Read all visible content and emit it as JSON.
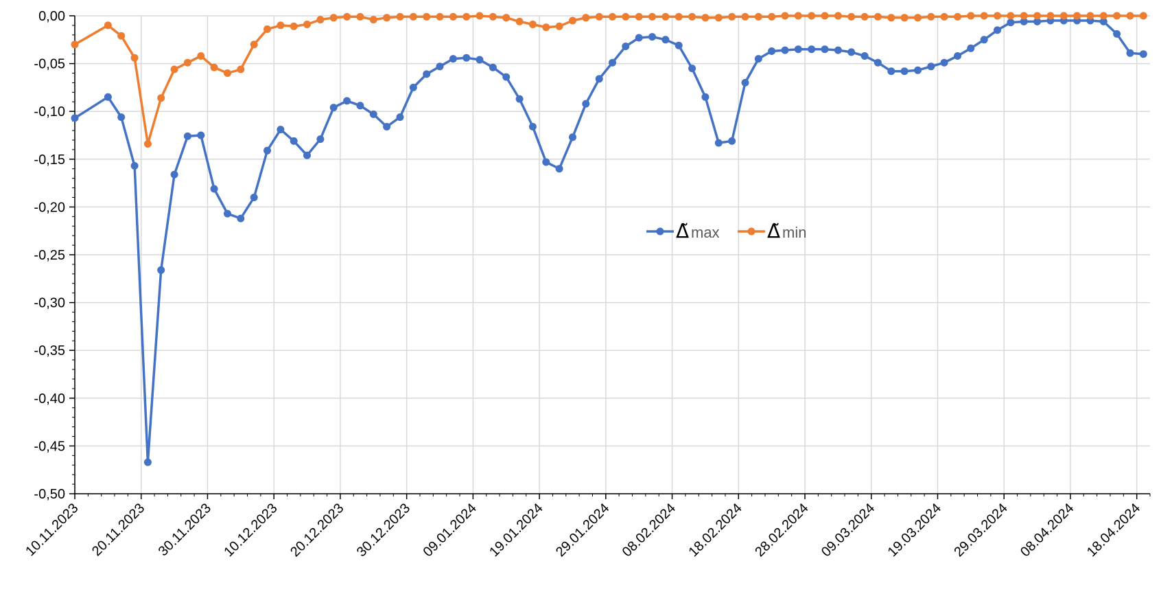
{
  "chart_data": {
    "type": "line",
    "title": "",
    "xlabel": "",
    "ylabel": "",
    "ylim": [
      -0.5,
      0.0
    ],
    "y_ticks": [
      "0,00",
      "-0,05",
      "-0,10",
      "-0,15",
      "-0,20",
      "-0,25",
      "-0,30",
      "-0,35",
      "-0,40",
      "-0,45",
      "-0,50"
    ],
    "y_tick_values": [
      0,
      -0.05,
      -0.1,
      -0.15,
      -0.2,
      -0.25,
      -0.3,
      -0.35,
      -0.4,
      -0.45,
      -0.5
    ],
    "x_range": [
      "2023-11-10",
      "2024-04-20"
    ],
    "x_ticks": [
      "10.11.2023",
      "20.11.2023",
      "30.11.2023",
      "10.12.2023",
      "20.12.2023",
      "30.12.2023",
      "09.01.2024",
      "19.01.2024",
      "29.01.2024",
      "08.02.2024",
      "18.02.2024",
      "28.02.2024",
      "09.03.2024",
      "19.03.2024",
      "29.03.2024",
      "08.04.2024",
      "18.04.2024"
    ],
    "x_tick_dates": [
      "2023-11-10",
      "2023-11-20",
      "2023-11-30",
      "2023-12-10",
      "2023-12-20",
      "2023-12-30",
      "2024-01-09",
      "2024-01-19",
      "2024-01-29",
      "2024-02-08",
      "2024-02-18",
      "2024-02-28",
      "2024-03-09",
      "2024-03-19",
      "2024-03-29",
      "2024-04-08",
      "2024-04-18"
    ],
    "grid": true,
    "legend_position": "center",
    "series": [
      {
        "name": "max",
        "symbol": "Δ̃",
        "color": "#4472C4",
        "points": [
          [
            "2023-11-10",
            -0.107
          ],
          [
            "2023-11-15",
            -0.085
          ],
          [
            "2023-11-17",
            -0.106
          ],
          [
            "2023-11-19",
            -0.157
          ],
          [
            "2023-11-21",
            -0.467
          ],
          [
            "2023-11-23",
            -0.266
          ],
          [
            "2023-11-25",
            -0.166
          ],
          [
            "2023-11-27",
            -0.126
          ],
          [
            "2023-11-29",
            -0.125
          ],
          [
            "2023-12-01",
            -0.181
          ],
          [
            "2023-12-03",
            -0.207
          ],
          [
            "2023-12-05",
            -0.212
          ],
          [
            "2023-12-07",
            -0.19
          ],
          [
            "2023-12-09",
            -0.141
          ],
          [
            "2023-12-11",
            -0.119
          ],
          [
            "2023-12-13",
            -0.131
          ],
          [
            "2023-12-15",
            -0.146
          ],
          [
            "2023-12-17",
            -0.129
          ],
          [
            "2023-12-19",
            -0.096
          ],
          [
            "2023-12-21",
            -0.089
          ],
          [
            "2023-12-23",
            -0.094
          ],
          [
            "2023-12-25",
            -0.103
          ],
          [
            "2023-12-27",
            -0.116
          ],
          [
            "2023-12-29",
            -0.106
          ],
          [
            "2023-12-31",
            -0.075
          ],
          [
            "2024-01-02",
            -0.061
          ],
          [
            "2024-01-04",
            -0.053
          ],
          [
            "2024-01-06",
            -0.045
          ],
          [
            "2024-01-08",
            -0.044
          ],
          [
            "2024-01-10",
            -0.046
          ],
          [
            "2024-01-12",
            -0.054
          ],
          [
            "2024-01-14",
            -0.064
          ],
          [
            "2024-01-16",
            -0.087
          ],
          [
            "2024-01-18",
            -0.116
          ],
          [
            "2024-01-20",
            -0.153
          ],
          [
            "2024-01-22",
            -0.16
          ],
          [
            "2024-01-24",
            -0.127
          ],
          [
            "2024-01-26",
            -0.092
          ],
          [
            "2024-01-28",
            -0.066
          ],
          [
            "2024-01-30",
            -0.049
          ],
          [
            "2024-02-01",
            -0.032
          ],
          [
            "2024-02-03",
            -0.023
          ],
          [
            "2024-02-05",
            -0.022
          ],
          [
            "2024-02-07",
            -0.025
          ],
          [
            "2024-02-09",
            -0.031
          ],
          [
            "2024-02-11",
            -0.055
          ],
          [
            "2024-02-13",
            -0.085
          ],
          [
            "2024-02-15",
            -0.133
          ],
          [
            "2024-02-17",
            -0.131
          ],
          [
            "2024-02-19",
            -0.07
          ],
          [
            "2024-02-21",
            -0.045
          ],
          [
            "2024-02-23",
            -0.037
          ],
          [
            "2024-02-25",
            -0.036
          ],
          [
            "2024-02-27",
            -0.035
          ],
          [
            "2024-02-29",
            -0.035
          ],
          [
            "2024-03-02",
            -0.035
          ],
          [
            "2024-03-04",
            -0.036
          ],
          [
            "2024-03-06",
            -0.038
          ],
          [
            "2024-03-08",
            -0.042
          ],
          [
            "2024-03-10",
            -0.049
          ],
          [
            "2024-03-12",
            -0.058
          ],
          [
            "2024-03-14",
            -0.058
          ],
          [
            "2024-03-16",
            -0.057
          ],
          [
            "2024-03-18",
            -0.053
          ],
          [
            "2024-03-20",
            -0.049
          ],
          [
            "2024-03-22",
            -0.042
          ],
          [
            "2024-03-24",
            -0.034
          ],
          [
            "2024-03-26",
            -0.025
          ],
          [
            "2024-03-28",
            -0.015
          ],
          [
            "2024-03-30",
            -0.007
          ],
          [
            "2024-04-01",
            -0.006
          ],
          [
            "2024-04-03",
            -0.006
          ],
          [
            "2024-04-05",
            -0.005
          ],
          [
            "2024-04-07",
            -0.005
          ],
          [
            "2024-04-09",
            -0.005
          ],
          [
            "2024-04-11",
            -0.005
          ],
          [
            "2024-04-13",
            -0.006
          ],
          [
            "2024-04-15",
            -0.019
          ],
          [
            "2024-04-17",
            -0.039
          ],
          [
            "2024-04-19",
            -0.04
          ]
        ]
      },
      {
        "name": "min",
        "symbol": "Δ̃",
        "color": "#ED7D31",
        "points": [
          [
            "2023-11-10",
            -0.03
          ],
          [
            "2023-11-15",
            -0.01
          ],
          [
            "2023-11-17",
            -0.021
          ],
          [
            "2023-11-19",
            -0.044
          ],
          [
            "2023-11-21",
            -0.134
          ],
          [
            "2023-11-23",
            -0.086
          ],
          [
            "2023-11-25",
            -0.056
          ],
          [
            "2023-11-27",
            -0.049
          ],
          [
            "2023-11-29",
            -0.042
          ],
          [
            "2023-12-01",
            -0.054
          ],
          [
            "2023-12-03",
            -0.06
          ],
          [
            "2023-12-05",
            -0.056
          ],
          [
            "2023-12-07",
            -0.03
          ],
          [
            "2023-12-09",
            -0.014
          ],
          [
            "2023-12-11",
            -0.01
          ],
          [
            "2023-12-13",
            -0.011
          ],
          [
            "2023-12-15",
            -0.009
          ],
          [
            "2023-12-17",
            -0.004
          ],
          [
            "2023-12-19",
            -0.002
          ],
          [
            "2023-12-21",
            -0.001
          ],
          [
            "2023-12-23",
            -0.001
          ],
          [
            "2023-12-25",
            -0.004
          ],
          [
            "2023-12-27",
            -0.002
          ],
          [
            "2023-12-29",
            -0.001
          ],
          [
            "2023-12-31",
            -0.001
          ],
          [
            "2024-01-02",
            -0.001
          ],
          [
            "2024-01-04",
            -0.001
          ],
          [
            "2024-01-06",
            -0.001
          ],
          [
            "2024-01-08",
            -0.001
          ],
          [
            "2024-01-10",
            0.0
          ],
          [
            "2024-01-12",
            -0.001
          ],
          [
            "2024-01-14",
            -0.002
          ],
          [
            "2024-01-16",
            -0.006
          ],
          [
            "2024-01-18",
            -0.009
          ],
          [
            "2024-01-20",
            -0.012
          ],
          [
            "2024-01-22",
            -0.011
          ],
          [
            "2024-01-24",
            -0.005
          ],
          [
            "2024-01-26",
            -0.002
          ],
          [
            "2024-01-28",
            -0.001
          ],
          [
            "2024-01-30",
            -0.001
          ],
          [
            "2024-02-01",
            -0.001
          ],
          [
            "2024-02-03",
            -0.001
          ],
          [
            "2024-02-05",
            -0.001
          ],
          [
            "2024-02-07",
            -0.001
          ],
          [
            "2024-02-09",
            -0.001
          ],
          [
            "2024-02-11",
            -0.001
          ],
          [
            "2024-02-13",
            -0.002
          ],
          [
            "2024-02-15",
            -0.002
          ],
          [
            "2024-02-17",
            -0.001
          ],
          [
            "2024-02-19",
            -0.001
          ],
          [
            "2024-02-21",
            -0.001
          ],
          [
            "2024-02-23",
            -0.001
          ],
          [
            "2024-02-25",
            0.0
          ],
          [
            "2024-02-27",
            0.0
          ],
          [
            "2024-02-29",
            0.0
          ],
          [
            "2024-03-02",
            0.0
          ],
          [
            "2024-03-04",
            0.0
          ],
          [
            "2024-03-06",
            -0.001
          ],
          [
            "2024-03-08",
            -0.001
          ],
          [
            "2024-03-10",
            -0.001
          ],
          [
            "2024-03-12",
            -0.002
          ],
          [
            "2024-03-14",
            -0.002
          ],
          [
            "2024-03-16",
            -0.002
          ],
          [
            "2024-03-18",
            -0.001
          ],
          [
            "2024-03-20",
            -0.001
          ],
          [
            "2024-03-22",
            -0.001
          ],
          [
            "2024-03-24",
            0.0
          ],
          [
            "2024-03-26",
            0.0
          ],
          [
            "2024-03-28",
            0.0
          ],
          [
            "2024-03-30",
            0.0
          ],
          [
            "2024-04-01",
            0.0
          ],
          [
            "2024-04-03",
            0.0
          ],
          [
            "2024-04-05",
            0.0
          ],
          [
            "2024-04-07",
            0.0
          ],
          [
            "2024-04-09",
            0.0
          ],
          [
            "2024-04-11",
            0.0
          ],
          [
            "2024-04-13",
            0.0
          ],
          [
            "2024-04-15",
            0.0
          ],
          [
            "2024-04-17",
            0.0
          ],
          [
            "2024-04-19",
            0.0
          ]
        ]
      }
    ]
  },
  "colors": {
    "grid": "#D9D9D9",
    "axis": "#000000",
    "background": "#FFFFFF"
  }
}
